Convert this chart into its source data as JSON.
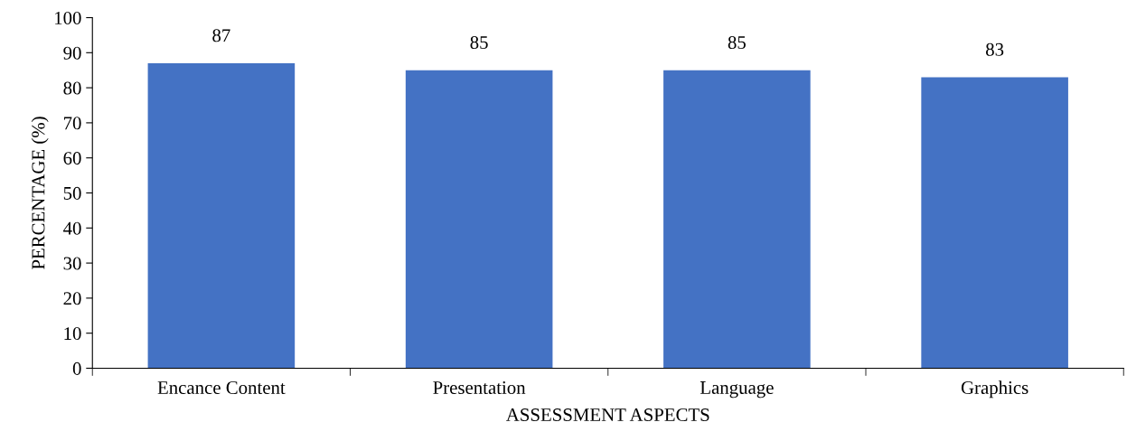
{
  "chart_data": {
    "type": "bar",
    "xlabel": "ASSESSMENT ASPECTS",
    "ylabel": "PERCENTAGE (%)",
    "categories": [
      "Encance Content",
      "Presentation",
      "Language",
      "Graphics"
    ],
    "values": [
      87,
      85,
      85,
      83
    ],
    "color": "#4472c4",
    "ylim": [
      0,
      100
    ],
    "yticks": [
      0,
      10,
      20,
      30,
      40,
      50,
      60,
      70,
      80,
      90,
      100
    ],
    "data_labels": true,
    "grid": false,
    "legend": false
  }
}
